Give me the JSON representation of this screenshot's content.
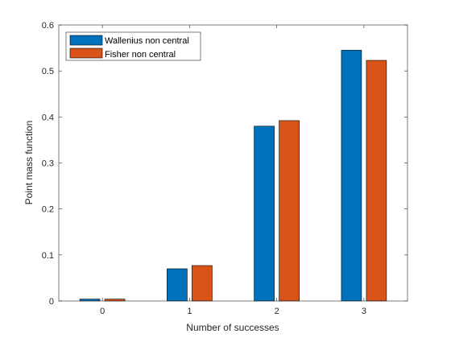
{
  "chart_data": {
    "type": "bar",
    "title": "",
    "xlabel": "Number of successes",
    "ylabel": "Point mass function",
    "categories": [
      "0",
      "1",
      "2",
      "3"
    ],
    "ylim": [
      0,
      0.6
    ],
    "yticks": [
      "0",
      "0.1",
      "0.2",
      "0.3",
      "0.4",
      "0.5",
      "0.6"
    ],
    "grid": false,
    "legend_position": "top-left",
    "series": [
      {
        "name": "Wallenius non central",
        "color": "#0072BD",
        "values": [
          0.004,
          0.07,
          0.38,
          0.545
        ]
      },
      {
        "name": "Fisher non central",
        "color": "#D95319",
        "values": [
          0.004,
          0.077,
          0.392,
          0.523
        ]
      }
    ]
  }
}
